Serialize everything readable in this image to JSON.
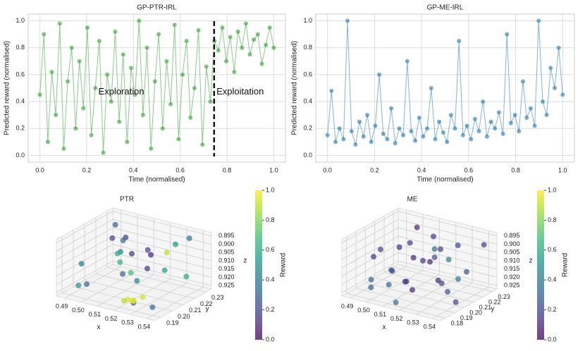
{
  "chart_data": [
    {
      "type": "line",
      "title": "GP-PTR-IRL",
      "xlabel": "Time (normalised)",
      "ylabel": "Predicted reward (normalised)",
      "color": "#2ca02c",
      "x": [
        0,
        0.017,
        0.034,
        0.051,
        0.068,
        0.085,
        0.102,
        0.119,
        0.136,
        0.153,
        0.169,
        0.186,
        0.203,
        0.22,
        0.237,
        0.254,
        0.271,
        0.288,
        0.305,
        0.322,
        0.339,
        0.356,
        0.373,
        0.39,
        0.407,
        0.424,
        0.441,
        0.458,
        0.475,
        0.492,
        0.508,
        0.525,
        0.542,
        0.559,
        0.576,
        0.593,
        0.61,
        0.627,
        0.644,
        0.661,
        0.678,
        0.695,
        0.712,
        0.729,
        0.746,
        0.763,
        0.78,
        0.797,
        0.814,
        0.831,
        0.847,
        0.864,
        0.881,
        0.898,
        0.915,
        0.932,
        0.949,
        0.966,
        0.983,
        1.0
      ],
      "values": [
        0.45,
        0.9,
        0.1,
        0.62,
        0.3,
        0.98,
        0.05,
        0.55,
        0.8,
        0.2,
        0.7,
        0.35,
        0.95,
        0.15,
        0.5,
        0.85,
        0.02,
        0.6,
        0.4,
        0.92,
        0.25,
        0.75,
        0.1,
        0.65,
        0.45,
        1.0,
        0.3,
        0.8,
        0.05,
        0.55,
        0.9,
        0.2,
        0.7,
        0.38,
        0.97,
        0.12,
        0.6,
        0.85,
        0.28,
        0.5,
        0.93,
        0.08,
        0.66,
        0.4,
        0.85,
        0.78,
        0.95,
        0.7,
        0.88,
        0.62,
        0.92,
        0.8,
        0.98,
        0.75,
        0.86,
        0.9,
        0.68,
        0.82,
        0.95,
        0.8
      ],
      "xlim": [
        -0.05,
        1.05
      ],
      "ylim": [
        -0.05,
        1.05
      ],
      "xticks": [
        {
          "value": 0,
          "label": "0.0"
        },
        0.2,
        0.4,
        0.6,
        0.8,
        {
          "value": 1,
          "label": "1.0"
        }
      ],
      "yticks": [
        {
          "value": 0,
          "label": "0.0"
        },
        0.2,
        0.4,
        0.6,
        0.8,
        {
          "value": 1,
          "label": "1.0"
        }
      ],
      "grid": true,
      "vline_x": 0.745,
      "annotations": [
        {
          "text": "Exploration",
          "x": 0.25,
          "y": 0.47
        },
        {
          "text": "Exploitation",
          "x": 0.755,
          "y": 0.47
        }
      ]
    },
    {
      "type": "line",
      "title": "GP-ME-IRL",
      "xlabel": "Time (normalised)",
      "ylabel": "Predicted reward (normalised)",
      "color": "#1f77b4",
      "x": [
        0,
        0.017,
        0.034,
        0.051,
        0.068,
        0.085,
        0.102,
        0.119,
        0.136,
        0.153,
        0.169,
        0.186,
        0.203,
        0.22,
        0.237,
        0.254,
        0.271,
        0.288,
        0.305,
        0.322,
        0.339,
        0.356,
        0.373,
        0.39,
        0.407,
        0.424,
        0.441,
        0.458,
        0.475,
        0.492,
        0.508,
        0.525,
        0.542,
        0.559,
        0.576,
        0.593,
        0.61,
        0.627,
        0.644,
        0.661,
        0.678,
        0.695,
        0.712,
        0.729,
        0.746,
        0.763,
        0.78,
        0.797,
        0.814,
        0.831,
        0.847,
        0.864,
        0.881,
        0.898,
        0.915,
        0.932,
        0.949,
        0.966,
        0.983,
        1.0
      ],
      "values": [
        0.15,
        0.48,
        0.1,
        0.2,
        0.12,
        1.0,
        0.18,
        0.08,
        0.25,
        0.14,
        0.3,
        0.1,
        0.22,
        0.6,
        0.16,
        0.12,
        0.35,
        0.09,
        0.2,
        0.15,
        0.7,
        0.18,
        0.11,
        0.28,
        0.14,
        0.2,
        0.5,
        0.12,
        0.25,
        0.17,
        0.1,
        0.3,
        0.2,
        0.85,
        0.15,
        0.22,
        0.12,
        0.27,
        0.18,
        0.4,
        0.14,
        0.25,
        0.2,
        0.32,
        0.16,
        0.9,
        0.24,
        0.3,
        0.18,
        0.55,
        0.28,
        0.35,
        0.22,
        1.0,
        0.4,
        0.3,
        0.65,
        0.5,
        0.8,
        0.45
      ],
      "xlim": [
        -0.05,
        1.05
      ],
      "ylim": [
        -0.05,
        1.05
      ],
      "xticks": [
        {
          "value": 0,
          "label": "0.0"
        },
        0.2,
        0.4,
        0.6,
        0.8,
        {
          "value": 1,
          "label": "1.0"
        }
      ],
      "yticks": [
        {
          "value": 0,
          "label": "0.0"
        },
        0.2,
        0.4,
        0.6,
        0.8,
        {
          "value": 1,
          "label": "1.0"
        }
      ],
      "grid": true
    },
    {
      "type": "scatter3d",
      "title": "PTR",
      "xlabel": "x",
      "ylabel": "y",
      "zlabel": "z",
      "x": [
        0.49,
        0.5,
        0.51,
        0.52,
        0.53,
        0.54,
        0.495,
        0.505,
        0.515,
        0.525,
        0.535,
        0.49,
        0.5,
        0.51,
        0.52,
        0.53,
        0.54,
        0.5,
        0.51,
        0.52,
        0.525,
        0.527,
        0.53,
        0.522,
        0.528,
        0.532,
        0.515,
        0.505,
        0.535,
        0.495
      ],
      "y": [
        0.23,
        0.22,
        0.21,
        0.23,
        0.2,
        0.22,
        0.19,
        0.215,
        0.225,
        0.195,
        0.21,
        0.2,
        0.19,
        0.205,
        0.215,
        0.225,
        0.19,
        0.23,
        0.22,
        0.2,
        0.19,
        0.192,
        0.188,
        0.191,
        0.19,
        0.193,
        0.2,
        0.21,
        0.23,
        0.22
      ],
      "z": [
        0.9,
        0.91,
        0.895,
        0.92,
        0.905,
        0.915,
        0.92,
        0.9,
        0.91,
        0.925,
        0.898,
        0.912,
        0.918,
        0.908,
        0.902,
        0.9,
        0.922,
        0.915,
        0.925,
        0.91,
        0.921,
        0.922,
        0.92,
        0.923,
        0.921,
        0.919,
        0.912,
        0.906,
        0.897,
        0.903
      ],
      "values": [
        0.3,
        0.45,
        0.2,
        0.55,
        0.15,
        0.6,
        0.5,
        0.35,
        0.1,
        0.25,
        0.9,
        0.4,
        0.3,
        0.65,
        0.2,
        0.5,
        0.35,
        0.15,
        0.45,
        0.7,
        0.95,
        0.9,
        0.92,
        0.88,
        0.97,
        0.93,
        0.3,
        0.6,
        0.4,
        0.2
      ],
      "xlim": [
        0.485,
        0.545
      ],
      "ylim": [
        0.185,
        0.235
      ],
      "zlim": [
        0.927,
        0.893
      ],
      "xticks": [
        0.49,
        {
          "value": 0.5,
          "label": "0.50"
        },
        0.51,
        0.52,
        0.53,
        0.54
      ],
      "yticks": [
        0.19,
        {
          "value": 0.2,
          "label": "0.20"
        },
        0.21,
        0.22,
        0.23
      ],
      "zticks": [
        0.895,
        {
          "value": 0.9,
          "label": "0.900"
        },
        0.905,
        {
          "value": 0.91,
          "label": "0.910"
        },
        0.915,
        {
          "value": 0.92,
          "label": "0.920"
        },
        0.925
      ],
      "colorbar": {
        "label": "Reward",
        "lim": [
          0,
          1
        ],
        "ticks": [
          {
            "value": 0,
            "label": "0.0"
          },
          0.2,
          0.4,
          0.6,
          0.8,
          {
            "value": 1,
            "label": "1.0"
          }
        ]
      },
      "colormap_colors": [
        "#440154",
        "#482878",
        "#3e4989",
        "#31688e",
        "#26828e",
        "#1f9e89",
        "#35b779",
        "#6ece58",
        "#b5de2b",
        "#fde725"
      ]
    },
    {
      "type": "scatter3d",
      "title": "ME",
      "xlabel": "x",
      "ylabel": "y",
      "zlabel": "z",
      "x": [
        0.49,
        0.495,
        0.5,
        0.505,
        0.51,
        0.515,
        0.52,
        0.525,
        0.53,
        0.535,
        0.54,
        0.49,
        0.5,
        0.51,
        0.52,
        0.53,
        0.54,
        0.495,
        0.505,
        0.515,
        0.525,
        0.535,
        0.5,
        0.51,
        0.52,
        0.53,
        0.497,
        0.512,
        0.527,
        0.538
      ],
      "y": [
        0.2,
        0.21,
        0.19,
        0.22,
        0.23,
        0.18,
        0.2,
        0.21,
        0.22,
        0.19,
        0.23,
        0.22,
        0.18,
        0.2,
        0.19,
        0.21,
        0.2,
        0.23,
        0.19,
        0.22,
        0.18,
        0.2,
        0.21,
        0.23,
        0.22,
        0.19,
        0.185,
        0.195,
        0.225,
        0.215
      ],
      "z": [
        0.91,
        0.92,
        0.9,
        0.895,
        0.915,
        0.925,
        0.905,
        0.9,
        0.92,
        0.91,
        0.9,
        0.925,
        0.915,
        0.92,
        0.9,
        0.905,
        0.925,
        0.91,
        0.92,
        0.898,
        0.915,
        0.92,
        0.905,
        0.91,
        0.925,
        0.9,
        0.922,
        0.918,
        0.902,
        0.912
      ],
      "values": [
        0.15,
        0.3,
        0.2,
        0.1,
        0.25,
        0.35,
        0.15,
        0.2,
        0.4,
        0.1,
        0.2,
        0.25,
        0.3,
        0.15,
        0.1,
        0.45,
        0.2,
        0.15,
        0.3,
        0.2,
        0.1,
        0.25,
        0.15,
        0.35,
        0.2,
        0.1,
        0.3,
        0.15,
        0.2,
        0.25
      ],
      "xlim": [
        0.485,
        0.545
      ],
      "ylim": [
        0.175,
        0.235
      ],
      "zlim": [
        0.927,
        0.893
      ],
      "xticks": [
        0.49,
        {
          "value": 0.5,
          "label": "0.50"
        },
        0.51,
        0.52,
        0.53,
        0.54
      ],
      "yticks": [
        0.18,
        0.19,
        {
          "value": 0.2,
          "label": "0.20"
        },
        0.21,
        0.22,
        0.23
      ],
      "zticks": [
        0.895,
        {
          "value": 0.9,
          "label": "0.900"
        },
        0.905,
        {
          "value": 0.91,
          "label": "0.910"
        },
        0.915,
        {
          "value": 0.92,
          "label": "0.920"
        },
        0.925
      ],
      "colorbar": {
        "label": "Reward",
        "lim": [
          0,
          1
        ],
        "ticks": [
          {
            "value": 0,
            "label": "0.0"
          },
          0.2,
          0.4,
          0.6,
          0.8,
          {
            "value": 1,
            "label": "1.0"
          }
        ]
      },
      "colormap_colors": [
        "#440154",
        "#482878",
        "#3e4989",
        "#31688e",
        "#26828e",
        "#1f9e89",
        "#35b779",
        "#6ece58",
        "#b5de2b",
        "#fde725"
      ]
    }
  ]
}
